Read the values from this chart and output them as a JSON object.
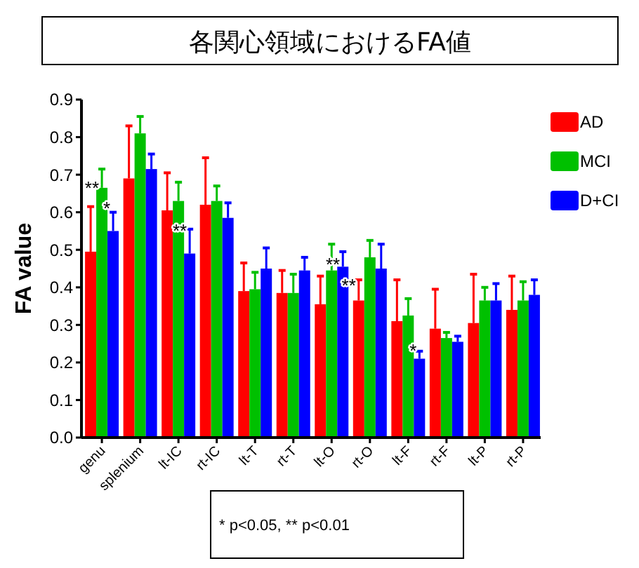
{
  "chart_data": {
    "type": "bar",
    "title": "各関心領域におけるFA値",
    "ylabel": "FA value",
    "categories": [
      "genu",
      "splenium",
      "lt-IC",
      "rt-IC",
      "lt-T",
      "rt-T",
      "lt-O",
      "rt-O",
      "lt-F",
      "rt-F",
      "lt-P",
      "rt-P"
    ],
    "series": [
      {
        "name": "AD",
        "color": "#ff0000",
        "values": [
          0.495,
          0.69,
          0.605,
          0.62,
          0.39,
          0.385,
          0.355,
          0.365,
          0.31,
          0.29,
          0.305,
          0.34
        ],
        "errors": [
          [
            0.495,
            0.615
          ],
          [
            0.69,
            0.83
          ],
          [
            0.605,
            0.705
          ],
          [
            0.62,
            0.745
          ],
          [
            0.39,
            0.465
          ],
          [
            0.385,
            0.445
          ],
          [
            0.355,
            0.43
          ],
          [
            0.365,
            0.42
          ],
          [
            0.31,
            0.42
          ],
          [
            0.29,
            0.395
          ],
          [
            0.305,
            0.435
          ],
          [
            0.34,
            0.43
          ]
        ]
      },
      {
        "name": "MCI",
        "color": "#00c000",
        "values": [
          0.665,
          0.81,
          0.63,
          0.63,
          0.395,
          0.385,
          0.445,
          0.48,
          0.325,
          0.265,
          0.365,
          0.365
        ],
        "errors": [
          [
            0.665,
            0.715
          ],
          [
            0.81,
            0.855
          ],
          [
            0.63,
            0.68
          ],
          [
            0.63,
            0.67
          ],
          [
            0.395,
            0.44
          ],
          [
            0.385,
            0.435
          ],
          [
            0.445,
            0.515
          ],
          [
            0.48,
            0.525
          ],
          [
            0.325,
            0.37
          ],
          [
            0.265,
            0.28
          ],
          [
            0.365,
            0.4
          ],
          [
            0.365,
            0.415
          ]
        ]
      },
      {
        "name": "D+CI",
        "color": "#0000ff",
        "values": [
          0.55,
          0.715,
          0.49,
          0.585,
          0.45,
          0.445,
          0.455,
          0.45,
          0.21,
          0.255,
          0.365,
          0.38
        ],
        "errors": [
          [
            0.55,
            0.6
          ],
          [
            0.715,
            0.755
          ],
          [
            0.49,
            0.555
          ],
          [
            0.585,
            0.625
          ],
          [
            0.45,
            0.505
          ],
          [
            0.445,
            0.48
          ],
          [
            0.455,
            0.495
          ],
          [
            0.45,
            0.515
          ],
          [
            0.21,
            0.23
          ],
          [
            0.255,
            0.27
          ],
          [
            0.365,
            0.41
          ],
          [
            0.38,
            0.42
          ]
        ]
      }
    ],
    "ylim": [
      0,
      0.9
    ],
    "yticks": [
      {
        "value": 0,
        "label": "0.0"
      },
      0.1,
      0.2,
      0.3,
      0.4,
      0.5,
      0.6,
      0.7,
      0.8,
      0.9
    ],
    "legend": "top right",
    "grid": false,
    "annotations": [
      {
        "text": "**",
        "x": "genu",
        "y": 0.675
      },
      {
        "text": "*",
        "x": "genu",
        "y": 0.62
      },
      {
        "text": "**",
        "x": "lt-IC",
        "y": 0.56
      },
      {
        "text": "**",
        "x": "lt-O",
        "y": 0.47
      },
      {
        "text": "**",
        "x": "rt-O",
        "y": 0.415
      },
      {
        "text": "*",
        "x": "lt-F",
        "y": 0.24
      },
      "* p<0.05, ** p<0.01"
    ]
  }
}
